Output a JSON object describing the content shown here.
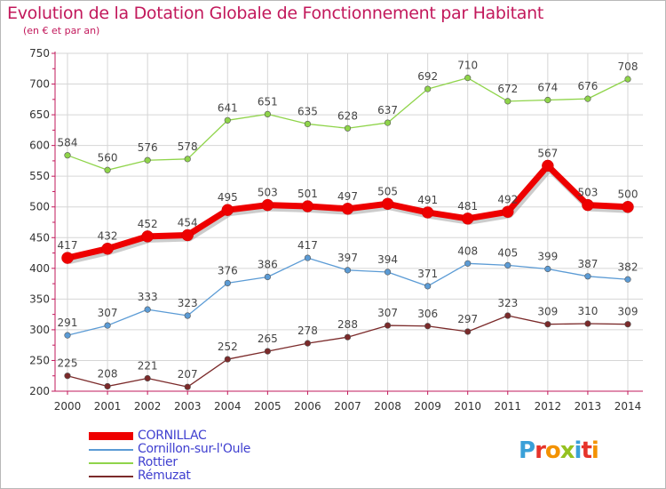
{
  "title": "Evolution de la Dotation Globale de Fonctionnement par Habitant",
  "subtitle": "(en € et par an)",
  "logo_text": "Proxiti",
  "chart_data": {
    "type": "line",
    "title": "Evolution de la Dotation Globale de Fonctionnement par Habitant",
    "subtitle": "(en € et par an)",
    "x": [
      "2000",
      "2001",
      "2002",
      "2003",
      "2004",
      "2005",
      "2006",
      "2007",
      "2008",
      "2009",
      "2010",
      "2011",
      "2012",
      "2013",
      "2014"
    ],
    "ylim": [
      200,
      750
    ],
    "yticks": [
      "200",
      "250",
      "300",
      "350",
      "400",
      "450",
      "500",
      "550",
      "600",
      "650",
      "700",
      "750"
    ],
    "grid": true,
    "legend_position": "bottom-left",
    "series": [
      {
        "name": "Rottier",
        "color": "#8fd44a",
        "values": [
          584,
          560,
          576,
          578,
          641,
          651,
          635,
          628,
          637,
          692,
          710,
          672,
          674,
          676,
          708
        ]
      },
      {
        "name": "Cornillon-sur-l'Oule",
        "color": "#5b9bd5",
        "values": [
          291,
          307,
          333,
          323,
          376,
          386,
          417,
          397,
          394,
          371,
          408,
          405,
          399,
          387,
          382
        ]
      },
      {
        "name": "Rémuzat",
        "color": "#7b2a2a",
        "values": [
          225,
          208,
          221,
          207,
          252,
          265,
          278,
          288,
          307,
          306,
          297,
          323,
          309,
          310,
          309
        ]
      },
      {
        "name": "CORNILLAC",
        "color": "#ee0000",
        "values": [
          417,
          432,
          452,
          454,
          495,
          503,
          501,
          497,
          505,
          491,
          481,
          492,
          567,
          503,
          500
        ]
      }
    ],
    "legend_order": [
      "CORNILLAC",
      "Cornillon-sur-l'Oule",
      "Rottier",
      "Rémuzat"
    ]
  }
}
